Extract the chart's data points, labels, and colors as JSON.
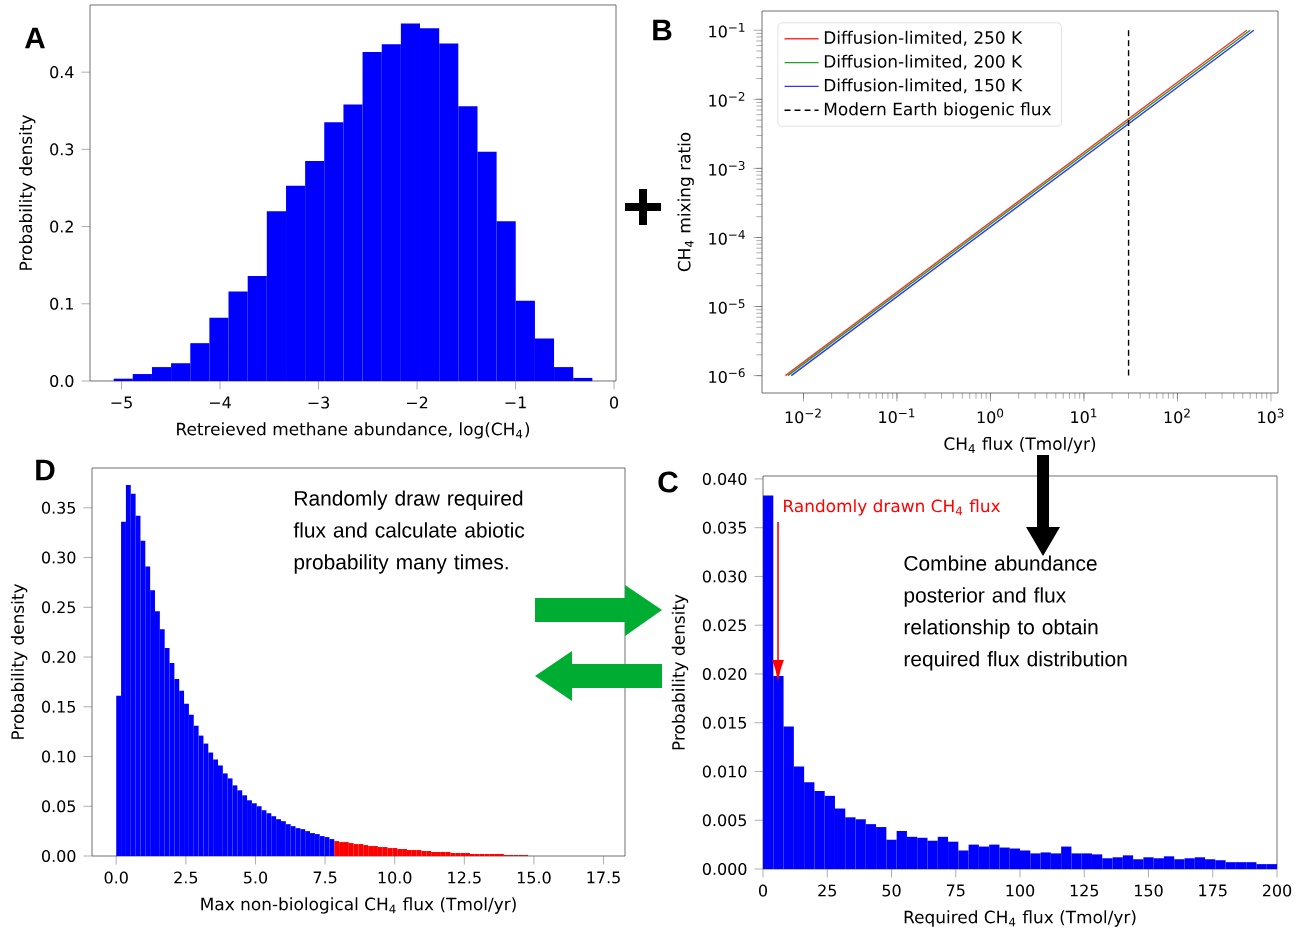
{
  "chart_data": [
    {
      "type": "histogram",
      "title": "A",
      "xlabel": "Retreieved methane abundance, log(CH$_{4}$)",
      "ylabel": "Probability density",
      "color": "#0000ff",
      "bins": [
        -5.08,
        -4.886,
        -4.691,
        -4.497,
        -4.302,
        -4.108,
        -3.914,
        -3.719,
        -3.525,
        -3.33,
        -3.136,
        -2.942,
        -2.747,
        -2.553,
        -2.358,
        -2.164,
        -1.97,
        -1.775,
        -1.581,
        -1.386,
        -1.192,
        -0.998,
        -0.803,
        -0.609,
        -0.414,
        -0.22
      ],
      "values": [
        0.003,
        0.009,
        0.018,
        0.023,
        0.049,
        0.082,
        0.116,
        0.136,
        0.22,
        0.253,
        0.285,
        0.335,
        0.358,
        0.426,
        0.436,
        0.463,
        0.457,
        0.437,
        0.356,
        0.297,
        0.207,
        0.104,
        0.055,
        0.018,
        0.004
      ],
      "xlim": [
        -5.32,
        0.02
      ],
      "ylim": [
        0,
        0.487
      ],
      "xticks": [
        {
          "value": -5,
          "label": "−5"
        },
        {
          "value": -4,
          "label": "−4"
        },
        {
          "value": -3,
          "label": "−3"
        },
        {
          "value": -2,
          "label": "−2"
        },
        {
          "value": -1,
          "label": "−1"
        },
        0
      ],
      "yticks": [
        {
          "value": 0,
          "label": "0.0"
        },
        0.1,
        0.2,
        0.3,
        0.4
      ]
    },
    {
      "type": "line",
      "title": "B",
      "xlabel": "CH$_{4}$ flux (Tmol/yr)",
      "ylabel": "CH$_{4}$ mixing ratio",
      "log": "xy",
      "legend": "top left",
      "xlim": [
        0.0036,
        1190
      ],
      "ylim": [
        5.6e-07,
        0.19
      ],
      "xticks": [
        {
          "value": 0.01,
          "label": "10$^{−2}$"
        },
        {
          "value": 0.1,
          "label": "10$^{−1}$"
        },
        {
          "value": 1,
          "label": "10$^{0}$"
        },
        {
          "value": 10,
          "label": "10$^{1}$"
        },
        {
          "value": 100,
          "label": "10$^{2}$"
        },
        {
          "value": 1000,
          "label": "10$^{3}$"
        }
      ],
      "yticks": [
        {
          "value": 1e-06,
          "label": "10$^{−6}$"
        },
        {
          "value": 1e-05,
          "label": "10$^{−5}$"
        },
        {
          "value": 0.0001,
          "label": "10$^{−4}$"
        },
        {
          "value": 0.001,
          "label": "10$^{−3}$"
        },
        {
          "value": 0.01,
          "label": "10$^{−2}$"
        },
        {
          "value": 0.1,
          "label": "10$^{−1}$"
        }
      ],
      "series": [
        {
          "name": "Diffusion-limited, 250 K",
          "color": "#ff3030",
          "x": [
            0.0064,
            553
          ],
          "values": [
            1e-06,
            0.1
          ]
        },
        {
          "name": "Diffusion-limited, 200 K",
          "color": "#20a020",
          "x": [
            0.0068,
            600
          ],
          "values": [
            1e-06,
            0.1
          ]
        },
        {
          "name": "Diffusion-limited, 150 K",
          "color": "#3030ff",
          "x": [
            0.0074,
            656
          ],
          "values": [
            1e-06,
            0.1
          ]
        },
        {
          "name": "Modern Earth biogenic flux",
          "color": "#000000",
          "line_style": "dashed",
          "x": [
            30,
            30
          ],
          "values": [
            1e-06,
            0.1
          ]
        }
      ]
    },
    {
      "type": "histogram",
      "title": "D",
      "xlabel": "Max non-biological CH$_{4}$ flux (Tmol/yr)",
      "ylabel": "Probability density",
      "annotations": [
        "Randomly draw required flux and calculate abiotic probability many times."
      ],
      "bins": [
        0,
        0.174,
        0.348,
        0.522,
        0.696,
        0.87,
        1.044,
        1.218,
        1.392,
        1.566,
        1.74,
        1.914,
        2.088,
        2.262,
        2.436,
        2.61,
        2.784,
        2.958,
        3.132,
        3.306,
        3.48,
        3.654,
        3.828,
        4.002,
        4.176,
        4.35,
        4.524,
        4.698,
        4.872,
        5.046,
        5.22,
        5.394,
        5.568,
        5.742,
        5.916,
        6.09,
        6.264,
        6.438,
        6.612,
        6.786,
        6.96,
        7.134,
        7.308,
        7.482,
        7.656,
        7.83,
        8.004,
        8.178,
        8.352,
        8.526,
        8.7,
        8.874,
        9.048,
        9.222,
        9.396,
        9.57,
        9.744,
        9.918,
        10.092,
        10.266,
        10.44,
        10.614,
        10.788,
        10.962,
        11.136,
        11.31,
        11.484,
        11.658,
        11.832,
        12.006,
        12.18,
        12.354,
        12.528,
        12.702,
        12.876,
        13.05,
        13.224,
        13.398,
        13.572,
        13.746,
        13.92,
        14.094,
        14.268,
        14.442,
        14.616,
        14.79
      ],
      "values": [
        0.161,
        0.336,
        0.373,
        0.364,
        0.342,
        0.317,
        0.291,
        0.267,
        0.246,
        0.228,
        0.209,
        0.194,
        0.178,
        0.166,
        0.153,
        0.142,
        0.131,
        0.121,
        0.113,
        0.104,
        0.097,
        0.091,
        0.083,
        0.078,
        0.071,
        0.066,
        0.061,
        0.056,
        0.053,
        0.05,
        0.046,
        0.043,
        0.04,
        0.037,
        0.035,
        0.032,
        0.03,
        0.028,
        0.027,
        0.025,
        0.023,
        0.022,
        0.02,
        0.019,
        0.017,
        0.015,
        0.014,
        0.014,
        0.013,
        0.012,
        0.012,
        0.011,
        0.01,
        0.01,
        0.009,
        0.009,
        0.008,
        0.008,
        0.007,
        0.007,
        0.006,
        0.006,
        0.006,
        0.005,
        0.005,
        0.004,
        0.004,
        0.004,
        0.004,
        0.003,
        0.003,
        0.003,
        0.003,
        0.002,
        0.002,
        0.002,
        0.002,
        0.002,
        0.002,
        0.002,
        0.001,
        0.001,
        0.001,
        0.001,
        0.001
      ],
      "colors": [
        "#0000ff",
        "#0000ff",
        "#0000ff",
        "#0000ff",
        "#0000ff",
        "#0000ff",
        "#0000ff",
        "#0000ff",
        "#0000ff",
        "#0000ff",
        "#0000ff",
        "#0000ff",
        "#0000ff",
        "#0000ff",
        "#0000ff",
        "#0000ff",
        "#0000ff",
        "#0000ff",
        "#0000ff",
        "#0000ff",
        "#0000ff",
        "#0000ff",
        "#0000ff",
        "#0000ff",
        "#0000ff",
        "#0000ff",
        "#0000ff",
        "#0000ff",
        "#0000ff",
        "#0000ff",
        "#0000ff",
        "#0000ff",
        "#0000ff",
        "#0000ff",
        "#0000ff",
        "#0000ff",
        "#0000ff",
        "#0000ff",
        "#0000ff",
        "#0000ff",
        "#0000ff",
        "#0000ff",
        "#0000ff",
        "#0000ff",
        "#0000ff",
        "#ff0000",
        "#ff0000",
        "#ff0000",
        "#ff0000",
        "#ff0000",
        "#ff0000",
        "#ff0000",
        "#ff0000",
        "#ff0000",
        "#ff0000",
        "#ff0000",
        "#ff0000",
        "#ff0000",
        "#ff0000",
        "#ff0000",
        "#ff0000",
        "#ff0000",
        "#ff0000",
        "#ff0000",
        "#ff0000",
        "#ff0000",
        "#ff0000",
        "#ff0000",
        "#ff0000",
        "#ff0000",
        "#ff0000",
        "#ff0000",
        "#ff0000",
        "#ff0000",
        "#ff0000",
        "#ff0000",
        "#ff0000",
        "#ff0000",
        "#ff0000",
        "#ff0000",
        "#ff0000",
        "#ff0000",
        "#ff0000",
        "#ff0000",
        "#ff0000"
      ],
      "xlim": [
        -0.87,
        18.27
      ],
      "ylim": [
        0,
        0.39
      ],
      "xticks": [
        {
          "value": 0,
          "label": "0.0"
        },
        2.5,
        {
          "value": 5,
          "label": "5.0"
        },
        7.5,
        {
          "value": 10,
          "label": "10.0"
        },
        12.5,
        {
          "value": 15,
          "label": "15.0"
        },
        17.5
      ],
      "yticks": [
        {
          "value": 0,
          "label": "0.00"
        },
        {
          "value": 0.05,
          "label": "0.05"
        },
        {
          "value": 0.1,
          "label": "0.10"
        },
        {
          "value": 0.15,
          "label": "0.15"
        },
        {
          "value": 0.2,
          "label": "0.20"
        },
        {
          "value": 0.25,
          "label": "0.25"
        },
        {
          "value": 0.3,
          "label": "0.30"
        },
        {
          "value": 0.35,
          "label": "0.35"
        }
      ]
    },
    {
      "type": "histogram",
      "title": "C",
      "xlabel": "Required CH$_{4}$ flux (Tmol/yr)",
      "ylabel": "Probability density",
      "color": "#0000ff",
      "annotations": [
        "Randomly drawn CH$_{4}$ flux",
        "Combine abundance posterior and flux relationship to obtain required flux distribution"
      ],
      "bins": [
        0,
        4,
        8,
        12,
        16,
        20,
        24,
        28,
        32,
        36,
        40,
        44,
        48,
        52,
        56,
        60,
        64,
        68,
        72,
        76,
        80,
        84,
        88,
        92,
        96,
        100,
        104,
        108,
        112,
        116,
        120,
        124,
        128,
        132,
        136,
        140,
        144,
        148,
        152,
        156,
        160,
        164,
        168,
        172,
        176,
        180,
        184,
        188,
        192,
        196,
        200
      ],
      "values": [
        0.0383,
        0.0198,
        0.0146,
        0.0105,
        0.0089,
        0.008,
        0.0075,
        0.0062,
        0.0053,
        0.0051,
        0.0046,
        0.0043,
        0.003,
        0.0039,
        0.0033,
        0.0032,
        0.0029,
        0.0033,
        0.0028,
        0.0019,
        0.0025,
        0.0023,
        0.0025,
        0.0022,
        0.0021,
        0.0019,
        0.0016,
        0.0017,
        0.0016,
        0.0023,
        0.0016,
        0.0016,
        0.0015,
        0.0011,
        0.0012,
        0.0014,
        0.001,
        0.0012,
        0.0011,
        0.0013,
        0.001,
        0.0011,
        0.0012,
        0.001,
        0.0009,
        0.0007,
        0.0007,
        0.0007,
        0.0005,
        0.0005
      ],
      "xlim": [
        0,
        200
      ],
      "ylim": [
        0,
        0.0403
      ],
      "xticks": [
        0,
        25,
        50,
        75,
        100,
        125,
        150,
        175,
        200
      ],
      "yticks": [
        {
          "value": 0,
          "label": "0.000"
        },
        {
          "value": 0.005,
          "label": "0.005"
        },
        {
          "value": 0.01,
          "label": "0.010"
        },
        {
          "value": 0.015,
          "label": "0.015"
        },
        {
          "value": 0.02,
          "label": "0.020"
        },
        {
          "value": 0.025,
          "label": "0.025"
        },
        {
          "value": 0.03,
          "label": "0.030"
        },
        {
          "value": 0.035,
          "label": "0.035"
        },
        {
          "value": 0.04,
          "label": "0.040"
        }
      ]
    }
  ]
}
